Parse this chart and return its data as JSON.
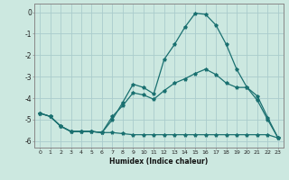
{
  "xlabel": "Humidex (Indice chaleur)",
  "xlim": [
    -0.5,
    23.5
  ],
  "ylim": [
    -6.3,
    0.4
  ],
  "yticks": [
    0,
    -1,
    -2,
    -3,
    -4,
    -5,
    -6
  ],
  "xticks": [
    0,
    1,
    2,
    3,
    4,
    5,
    6,
    7,
    8,
    9,
    10,
    11,
    12,
    13,
    14,
    15,
    16,
    17,
    18,
    19,
    20,
    21,
    22,
    23
  ],
  "bg_color": "#cce8e0",
  "grid_color": "#aacccc",
  "line_color": "#1a7070",
  "line1_x": [
    0,
    1,
    2,
    3,
    4,
    5,
    6,
    7,
    8,
    9,
    10,
    11,
    12,
    13,
    14,
    15,
    16,
    17,
    18,
    19,
    20,
    21,
    22,
    23
  ],
  "line1_y": [
    -4.7,
    -4.85,
    -5.3,
    -5.55,
    -5.55,
    -5.55,
    -5.6,
    -5.0,
    -4.2,
    -3.35,
    -3.5,
    -3.8,
    -2.2,
    -1.5,
    -0.7,
    -0.05,
    -0.1,
    -0.6,
    -1.5,
    -2.65,
    -3.5,
    -3.9,
    -4.9,
    -5.85
  ],
  "line2_x": [
    0,
    1,
    2,
    3,
    4,
    5,
    6,
    7,
    8,
    9,
    10,
    11,
    12,
    13,
    14,
    15,
    16,
    17,
    18,
    19,
    20,
    21,
    22,
    23
  ],
  "line2_y": [
    -4.7,
    -4.85,
    -5.3,
    -5.55,
    -5.55,
    -5.55,
    -5.6,
    -4.85,
    -4.35,
    -3.75,
    -3.85,
    -4.05,
    -3.65,
    -3.3,
    -3.1,
    -2.85,
    -2.65,
    -2.9,
    -3.3,
    -3.5,
    -3.5,
    -4.1,
    -5.0,
    -5.85
  ],
  "line3_x": [
    0,
    1,
    2,
    3,
    4,
    5,
    6,
    7,
    8,
    9,
    10,
    11,
    12,
    13,
    14,
    15,
    16,
    17,
    18,
    19,
    20,
    21,
    22,
    23
  ],
  "line3_y": [
    -4.7,
    -4.85,
    -5.3,
    -5.55,
    -5.55,
    -5.55,
    -5.6,
    -5.6,
    -5.65,
    -5.7,
    -5.7,
    -5.7,
    -5.7,
    -5.7,
    -5.7,
    -5.7,
    -5.7,
    -5.7,
    -5.7,
    -5.7,
    -5.7,
    -5.7,
    -5.7,
    -5.85
  ]
}
